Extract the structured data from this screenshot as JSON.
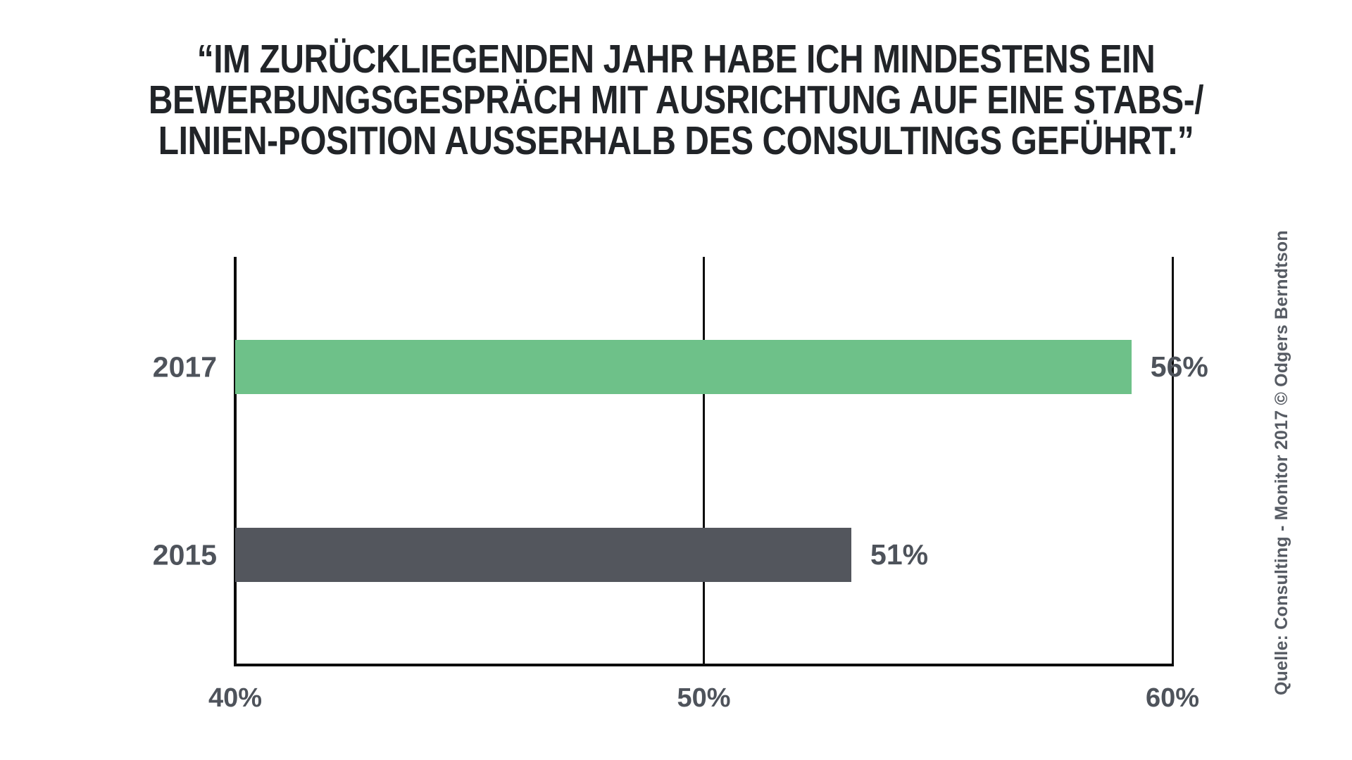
{
  "title_lines": [
    "“IM ZURÜCKLIEGENDEN JAHR HABE ICH MINDESTENS EIN",
    "BEWERBUNGSGESPRÄCH MIT AUSRICHTUNG AUF EINE STABS-/",
    "LINIEN-POSITION AUSSERHALB DES CONSULTINGS GEFÜHRT.”"
  ],
  "chart_data": {
    "type": "bar",
    "orientation": "horizontal",
    "title": "“Im zurückliegenden Jahr habe ich mindestens ein Bewerbungsgespräch mit Ausrichtung auf eine Stabs-/Linien-Position ausserhalb des Consultings geführt.”",
    "categories": [
      "2017",
      "2015"
    ],
    "values": [
      56,
      51
    ],
    "value_labels": [
      "56%",
      "51%"
    ],
    "xlim": [
      40,
      60
    ],
    "xtick_values": [
      40,
      50,
      60
    ],
    "xtick_labels": [
      "40%",
      "50%",
      "60%"
    ],
    "bar_colors": [
      "#6ec189",
      "#53565d"
    ],
    "grid": "vertical gridlines at 50% and 60%, left axis at 40%, no top border",
    "legend": "none",
    "label_color": "#4e535b",
    "axis_color": "#0b0b0b",
    "source": "Quelle: Consulting - Monitor 2017 © Odgers Berndtson"
  }
}
